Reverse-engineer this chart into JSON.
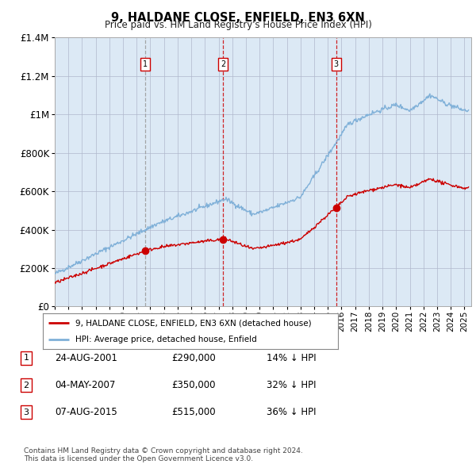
{
  "title": "9, HALDANE CLOSE, ENFIELD, EN3 6XN",
  "subtitle": "Price paid vs. HM Land Registry's House Price Index (HPI)",
  "background_color": "#dce9f5",
  "ylim": [
    0,
    1400000
  ],
  "yticks": [
    0,
    200000,
    400000,
    600000,
    800000,
    1000000,
    1200000,
    1400000
  ],
  "ytick_labels": [
    "£0",
    "£200K",
    "£400K",
    "£600K",
    "£800K",
    "£1M",
    "£1.2M",
    "£1.4M"
  ],
  "sale_dates_num": [
    2001.65,
    2007.34,
    2015.6
  ],
  "sale_prices": [
    290000,
    350000,
    515000
  ],
  "sale_labels": [
    "1",
    "2",
    "3"
  ],
  "sale_vline_styles": [
    "--",
    "--",
    "--"
  ],
  "sale_vline_colors": [
    "#999999",
    "#cc0000",
    "#cc0000"
  ],
  "sale_info": [
    {
      "label": "1",
      "date": "24-AUG-2001",
      "price": "£290,000",
      "hpi": "14% ↓ HPI"
    },
    {
      "label": "2",
      "date": "04-MAY-2007",
      "price": "£350,000",
      "hpi": "32% ↓ HPI"
    },
    {
      "label": "3",
      "date": "07-AUG-2015",
      "price": "£515,000",
      "hpi": "36% ↓ HPI"
    }
  ],
  "legend_line1": "9, HALDANE CLOSE, ENFIELD, EN3 6XN (detached house)",
  "legend_line2": "HPI: Average price, detached house, Enfield",
  "footnote": "Contains HM Land Registry data © Crown copyright and database right 2024.\nThis data is licensed under the Open Government Licence v3.0.",
  "red_line_color": "#cc0000",
  "blue_line_color": "#7fb0d8",
  "xmin": 1995.0,
  "xmax": 2025.5
}
